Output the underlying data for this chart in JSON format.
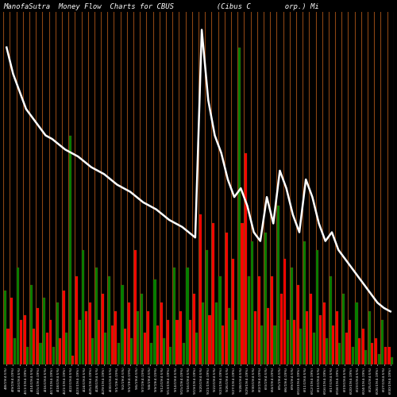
{
  "title": "ManofaSutra  Money Flow  Charts for CBUS          (Cibus C        orp.) Mi",
  "bg_color": "#000000",
  "bar_colors_tall": [
    "green",
    "red",
    "green",
    "red",
    "green",
    "red",
    "green",
    "red",
    "green",
    "red",
    "green",
    "red",
    "green",
    "red",
    "green",
    "red",
    "green",
    "red",
    "green",
    "red",
    "red",
    "green",
    "red",
    "green",
    "red",
    "red",
    "green",
    "red",
    "green",
    "red",
    "red",
    "green",
    "red",
    "green",
    "red",
    "red",
    "green",
    "red",
    "green",
    "red",
    "green",
    "red",
    "green",
    "red",
    "green",
    "red",
    "green",
    "red",
    "green",
    "red",
    "green",
    "red",
    "green",
    "red",
    "green",
    "red",
    "green",
    "red",
    "green",
    "red"
  ],
  "bar_colors_short": [
    "red",
    "green",
    "red",
    "green",
    "red",
    "green",
    "red",
    "green",
    "red",
    "green",
    "red",
    "green",
    "red",
    "green",
    "red",
    "green",
    "red",
    "green",
    "red",
    "green",
    "green",
    "red",
    "green",
    "red",
    "green",
    "green",
    "red",
    "green",
    "red",
    "green",
    "green",
    "red",
    "green",
    "red",
    "green",
    "green",
    "red",
    "green",
    "red",
    "green",
    "red",
    "green",
    "red",
    "green",
    "red",
    "green",
    "red",
    "green",
    "red",
    "green",
    "red",
    "green",
    "red",
    "green",
    "red",
    "green",
    "red",
    "green",
    "red",
    "green"
  ],
  "bar_tall": [
    4.2,
    3.8,
    5.5,
    2.8,
    4.5,
    3.2,
    3.8,
    2.5,
    3.5,
    4.2,
    13.0,
    5.0,
    6.5,
    3.5,
    5.5,
    4.0,
    5.0,
    3.0,
    4.5,
    3.5,
    6.5,
    4.0,
    3.0,
    4.8,
    3.5,
    2.5,
    5.5,
    3.0,
    5.5,
    4.0,
    8.5,
    6.5,
    8.0,
    5.0,
    7.5,
    6.0,
    18.0,
    12.0,
    7.0,
    5.0,
    7.5,
    5.0,
    9.0,
    6.0,
    5.5,
    4.5,
    7.0,
    4.0,
    6.5,
    3.5,
    5.0,
    3.0,
    4.0,
    2.5,
    3.5,
    2.0,
    3.0,
    1.5,
    2.5,
    1.0
  ],
  "bar_short": [
    2.0,
    1.5,
    2.5,
    1.0,
    2.0,
    1.2,
    1.8,
    1.0,
    1.5,
    1.8,
    0.5,
    2.5,
    3.0,
    1.5,
    2.5,
    1.8,
    2.2,
    1.2,
    2.0,
    1.5,
    3.0,
    1.8,
    1.2,
    2.2,
    1.5,
    1.0,
    2.5,
    1.2,
    2.5,
    1.8,
    3.5,
    2.8,
    3.5,
    2.2,
    3.2,
    2.5,
    8.0,
    5.0,
    3.0,
    2.2,
    3.2,
    2.2,
    4.0,
    2.5,
    2.5,
    2.0,
    3.0,
    1.8,
    2.8,
    1.5,
    2.2,
    1.2,
    1.8,
    1.0,
    1.5,
    0.8,
    1.2,
    0.6,
    1.0,
    0.4
  ],
  "line_values": [
    18.0,
    16.5,
    15.5,
    14.5,
    14.0,
    13.5,
    13.0,
    12.8,
    12.5,
    12.2,
    12.0,
    11.8,
    11.5,
    11.2,
    11.0,
    10.8,
    10.5,
    10.2,
    10.0,
    9.8,
    9.5,
    9.2,
    9.0,
    8.8,
    8.5,
    8.2,
    8.0,
    7.8,
    7.5,
    7.2,
    19.0,
    15.0,
    13.0,
    12.0,
    10.5,
    9.5,
    10.0,
    9.0,
    7.5,
    7.0,
    9.5,
    8.0,
    11.0,
    10.0,
    8.5,
    7.5,
    10.5,
    9.5,
    8.0,
    7.0,
    7.5,
    6.5,
    6.0,
    5.5,
    5.0,
    4.5,
    4.0,
    3.5,
    3.2,
    3.0
  ],
  "xlabels": [
    "4/8/19(4:5%)",
    "4/9/19(4:19%)",
    "4/10/19(4:5%)",
    "4/11/19(4:19%)",
    "4/14/19(4:5%)",
    "4/15/19(4:19%)",
    "4/16/19(4:5%)",
    "4/17/19(4:19%)",
    "4/18/19(4:5%)",
    "4/21/19(4:19%)",
    "4/22/19(4:5%)",
    "4/23/19(4:19%)",
    "4/24/19(4:5%)",
    "4/25/19(4:19%)",
    "4/28/19(4:5%)",
    "4/29/19(4:19%)",
    "4/30/19(4:5%)",
    "5/1/19(4:19%)",
    "5/2/19(4:5%)",
    "5/5/19(4:19%)",
    "5/6/19(4:5%)",
    "5/7/19(4:19%)",
    "5/8/19(4:5%)",
    "5/9/19(4:19%)",
    "5/12/19(4:5%)",
    "5/13/19(4:19%)",
    "5/14/19(4:5%)",
    "5/15/19(4:19%)",
    "5/16/19(4:5%)",
    "5/19/19(4:19%)",
    "5/20/19(4:5%)",
    "5/21/19(4:19%)",
    "5/22/19(4:5%)",
    "5/23/19(4:19%)",
    "5/26/19(4:5%)",
    "5/27/19(4:19%)",
    "5/28/19(4:5%)",
    "5/29/19(4:19%)",
    "5/30/19(4:5%)",
    "6/2/19(4:19%)",
    "6/3/19(4:5%)",
    "6/4/19(4:19%)",
    "6/5/19(4:5%)",
    "6/6/19(4:19%)",
    "6/9/19(4:5%)",
    "6/10/19(4:19%)",
    "6/11/19(4:5%)",
    "6/12/19(4:19%)",
    "6/13/19(4:5%)",
    "6/16/19(4:19%)",
    "6/17/19(4:5%)",
    "6/18/19(4:19%)",
    "6/19/19(4:5%)",
    "6/20/19(4:19%)",
    "6/23/19(4:5%)",
    "6/24/19(4:19%)",
    "6/25/19(4:5%)",
    "6/26/19(4:19%)",
    "6/27/19(4:5%)",
    "6/30/19(4:19%)"
  ],
  "line_color": "#ffffff",
  "title_color": "#ffffff",
  "title_fontsize": 6.5,
  "bar_edge_color": "#8B4513",
  "sep_color": "#8B4513",
  "ylim": [
    0,
    20
  ]
}
